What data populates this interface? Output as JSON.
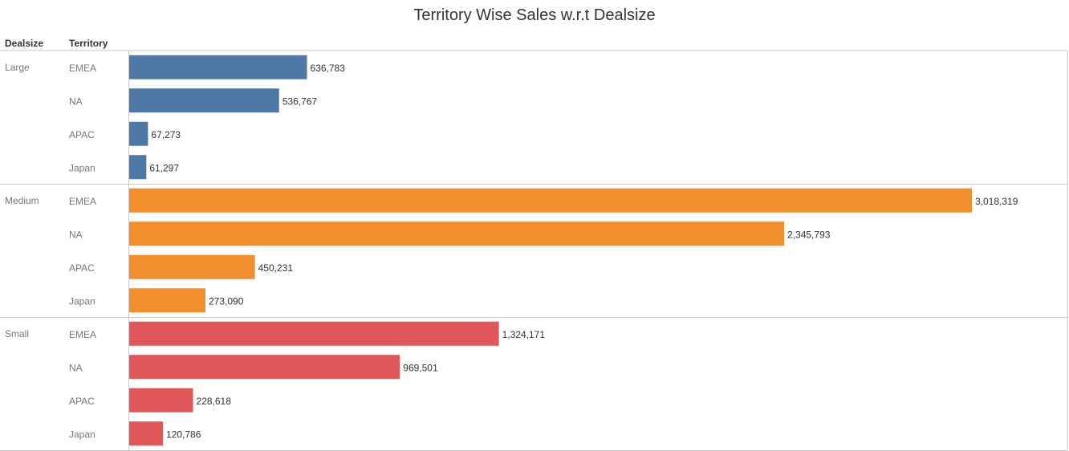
{
  "title": "Territory Wise Sales w.r.t Dealsize",
  "headers": {
    "dealsize": "Dealsize",
    "territory": "Territory"
  },
  "colors": {
    "Large": "#4e79a7",
    "Medium": "#f28e2b",
    "Small": "#e15759",
    "border": "#c8c8c8",
    "text": "#333333",
    "muted": "#777777"
  },
  "chart_data": {
    "type": "bar",
    "orientation": "horizontal",
    "title": "Territory Wise Sales w.r.t Dealsize",
    "grid": false,
    "groups": [
      {
        "name": "Large",
        "categories": [
          "EMEA",
          "NA",
          "APAC",
          "Japan"
        ],
        "values": [
          636783,
          536767,
          67273,
          61297
        ],
        "labels": [
          "636,783",
          "536,767",
          "67,273",
          "61,297"
        ]
      },
      {
        "name": "Medium",
        "categories": [
          "EMEA",
          "NA",
          "APAC",
          "Japan"
        ],
        "values": [
          3018319,
          2345793,
          450231,
          273090
        ],
        "labels": [
          "3,018,319",
          "2,345,793",
          "450,231",
          "273,090"
        ]
      },
      {
        "name": "Small",
        "categories": [
          "EMEA",
          "NA",
          "APAC",
          "Japan"
        ],
        "values": [
          1324171,
          969501,
          228618,
          120786
        ],
        "labels": [
          "1,324,171",
          "969,501",
          "228,618",
          "120,786"
        ]
      }
    ]
  }
}
